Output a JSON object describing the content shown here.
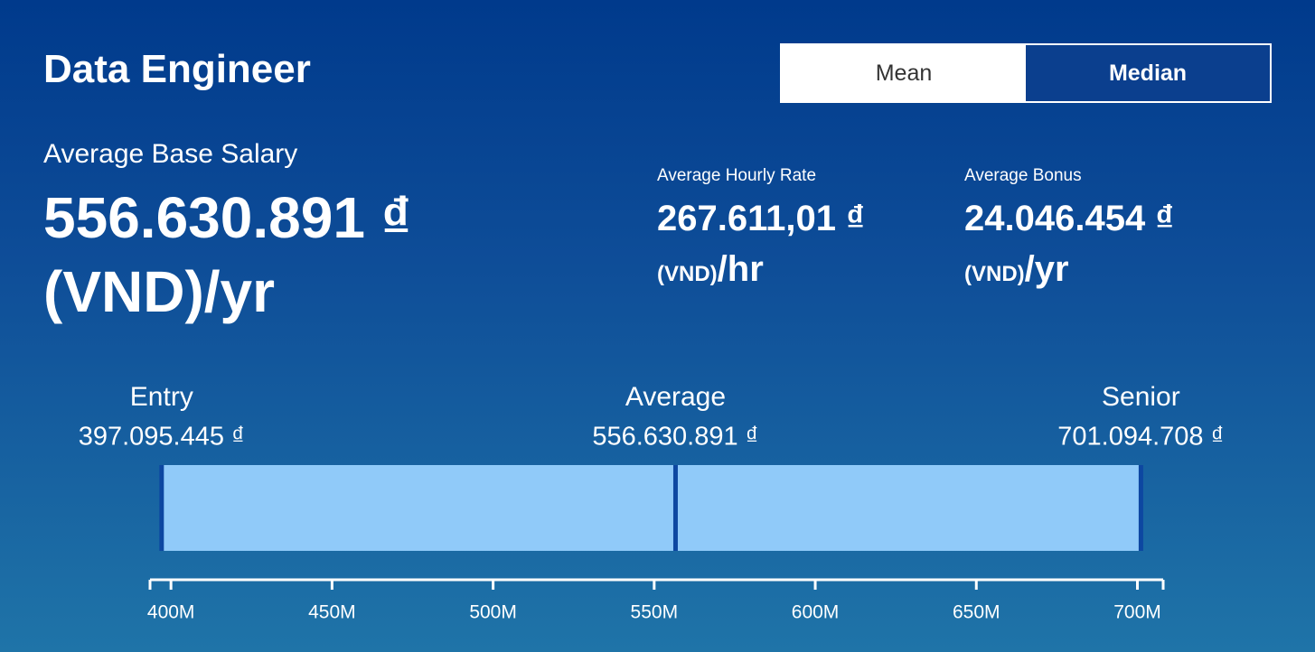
{
  "header": {
    "title": "Data Engineer",
    "toggle": [
      "Mean",
      "Median"
    ]
  },
  "salary": {
    "label": "Average Base Salary",
    "value": "556.630.891 ₫",
    "unit": "(VND)/yr"
  },
  "hourly": {
    "label": "Average Hourly Rate",
    "value": "267.611,01 ₫",
    "unit_small": "(VND)",
    "unit": "/hr"
  },
  "bonus": {
    "label": "Average Bonus",
    "value": "24.046.454 ₫",
    "unit_small": "(VND)",
    "unit": "/yr"
  },
  "chart_data": {
    "type": "range",
    "categories": [
      "Entry",
      "Average",
      "Senior"
    ],
    "values": [
      397095445,
      556630891,
      701094708
    ],
    "value_labels": [
      "397.095.445 ₫",
      "556.630.891 ₫",
      "701.094.708 ₫"
    ],
    "color": "#90caf9",
    "marker_color": "#0d47a1",
    "xlim": [
      393500000,
      708000000
    ],
    "xticks": [
      {
        "value": 400000000,
        "label": "400M"
      },
      {
        "value": 450000000,
        "label": "450M"
      },
      {
        "value": 500000000,
        "label": "500M"
      },
      {
        "value": 550000000,
        "label": "550M"
      },
      {
        "value": 600000000,
        "label": "600M"
      },
      {
        "value": 650000000,
        "label": "650M"
      },
      {
        "value": 700000000,
        "label": "700M"
      }
    ]
  }
}
